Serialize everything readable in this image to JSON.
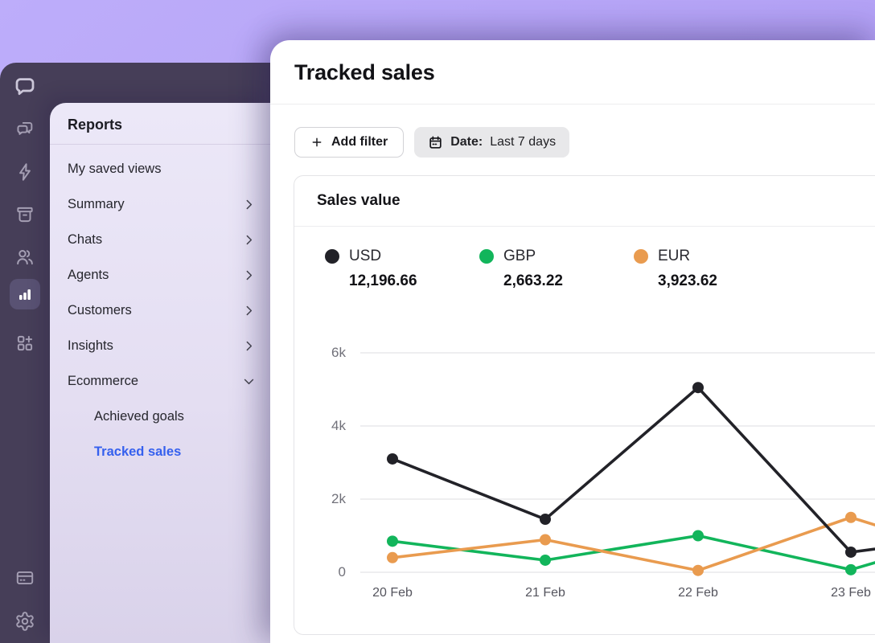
{
  "theme": {
    "brand_purple": "#b3a1f5",
    "sidebar_bg": "#463e58",
    "nav_active_color": "#3560ee"
  },
  "sidebar": {
    "icons": [
      "livechat-logo",
      "chats",
      "lightning",
      "archives",
      "team",
      "reports",
      "apps",
      "billing",
      "settings"
    ],
    "active_icon": "reports"
  },
  "nav": {
    "title": "Reports",
    "items": [
      {
        "label": "My saved views",
        "chevron": "none",
        "indent": false,
        "active": false
      },
      {
        "label": "Summary",
        "chevron": "right",
        "indent": false,
        "active": false
      },
      {
        "label": "Chats",
        "chevron": "right",
        "indent": false,
        "active": false
      },
      {
        "label": "Agents",
        "chevron": "right",
        "indent": false,
        "active": false
      },
      {
        "label": "Customers",
        "chevron": "right",
        "indent": false,
        "active": false
      },
      {
        "label": "Insights",
        "chevron": "right",
        "indent": false,
        "active": false
      },
      {
        "label": "Ecommerce",
        "chevron": "down",
        "indent": false,
        "active": false
      },
      {
        "label": "Achieved goals",
        "chevron": "none",
        "indent": true,
        "active": false
      },
      {
        "label": "Tracked sales",
        "chevron": "none",
        "indent": true,
        "active": true
      }
    ]
  },
  "main": {
    "title": "Tracked sales",
    "filters": {
      "add_filter_label": "Add filter",
      "date_label": "Date:",
      "date_value": "Last 7 days"
    },
    "card_title": "Sales value"
  },
  "chart_data": {
    "type": "line",
    "title": "Sales value",
    "categories": [
      "20 Feb",
      "21 Feb",
      "22 Feb",
      "23 Feb"
    ],
    "series": [
      {
        "name": "USD",
        "total": "12,196.66",
        "color": "#222228",
        "values": [
          3100,
          1450,
          5050,
          550
        ],
        "next_offscreen_value": 1100
      },
      {
        "name": "GBP",
        "total": "2,663.22",
        "color": "#12b55b",
        "values": [
          850,
          330,
          1000,
          70
        ],
        "next_offscreen_value": 1300
      },
      {
        "name": "EUR",
        "total": "3,923.62",
        "color": "#e99b4f",
        "values": [
          400,
          890,
          50,
          1500
        ],
        "next_offscreen_value": 200
      }
    ],
    "ylim": [
      0,
      6000
    ],
    "yticks": [
      0,
      2000,
      4000,
      6000
    ],
    "ytick_labels": [
      "0",
      "2k",
      "4k",
      "6k"
    ],
    "grid": true,
    "legend_position": "top"
  }
}
